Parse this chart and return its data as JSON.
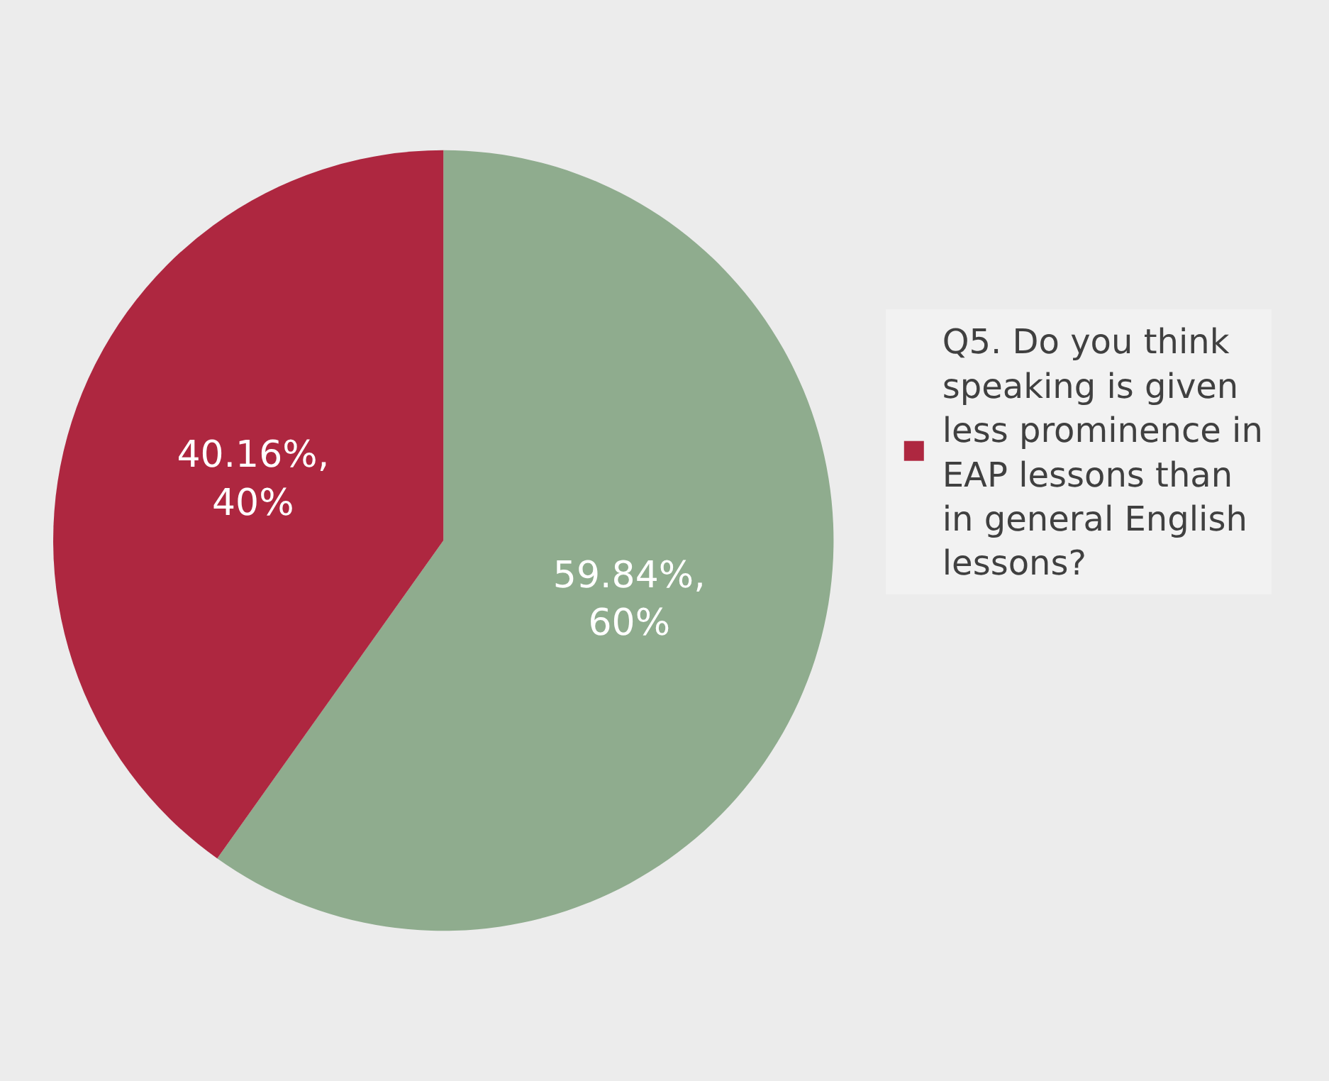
{
  "chart_data": {
    "type": "pie",
    "categories": [
      null,
      "Q5. Do you think speaking is given less prominence in EAP lessons than in general English lessons?"
    ],
    "values": [
      59.84,
      40.16
    ],
    "colors": [
      "#8fac8e",
      "#ae2740"
    ],
    "value_labels": [
      "59.84%,\n60%",
      "40.16%,\n40%"
    ],
    "legend": "right"
  }
}
